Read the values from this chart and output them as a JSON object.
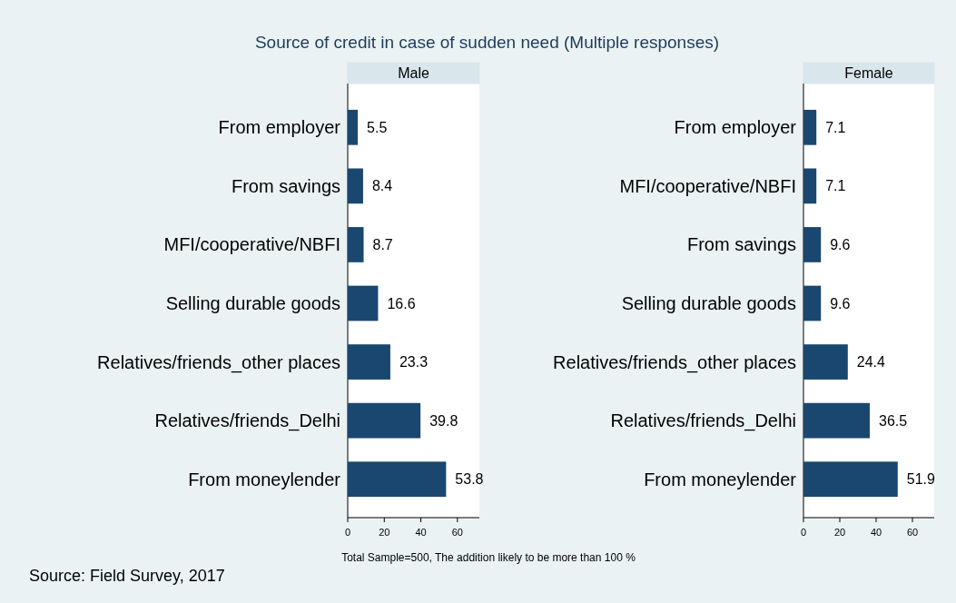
{
  "chart_data": [
    {
      "type": "bar",
      "orientation": "horizontal",
      "title": "Source of credit in case of sudden need (Multiple responses)",
      "subtitle": "Male",
      "categories": [
        "From employer",
        "From savings",
        "MFI/cooperative/NBFI",
        "Selling durable goods",
        "Relatives/friends_other places",
        "Relatives/friends_Delhi",
        "From moneylender"
      ],
      "values": [
        5.5,
        8.4,
        8.7,
        16.6,
        23.3,
        39.8,
        53.8
      ],
      "color": "#1a476f",
      "xlim": [
        0,
        72
      ],
      "xticks": [
        0,
        20,
        40,
        60
      ],
      "data_labels": true,
      "annotations": [
        "Total Sample=500, The addition likely to be more than 100 %",
        "Source: Field Survey, 2017"
      ]
    },
    {
      "type": "bar",
      "orientation": "horizontal",
      "subtitle": "Female",
      "categories": [
        "From employer",
        "MFI/cooperative/NBFI",
        "From savings",
        "Selling durable goods",
        "Relatives/friends_other places",
        "Relatives/friends_Delhi",
        "From moneylender"
      ],
      "values": [
        7.1,
        7.1,
        9.6,
        9.6,
        24.4,
        36.5,
        51.9
      ],
      "color": "#1a476f",
      "xlim": [
        0,
        72
      ],
      "xticks": [
        0,
        20,
        40,
        60
      ],
      "data_labels": true
    }
  ]
}
